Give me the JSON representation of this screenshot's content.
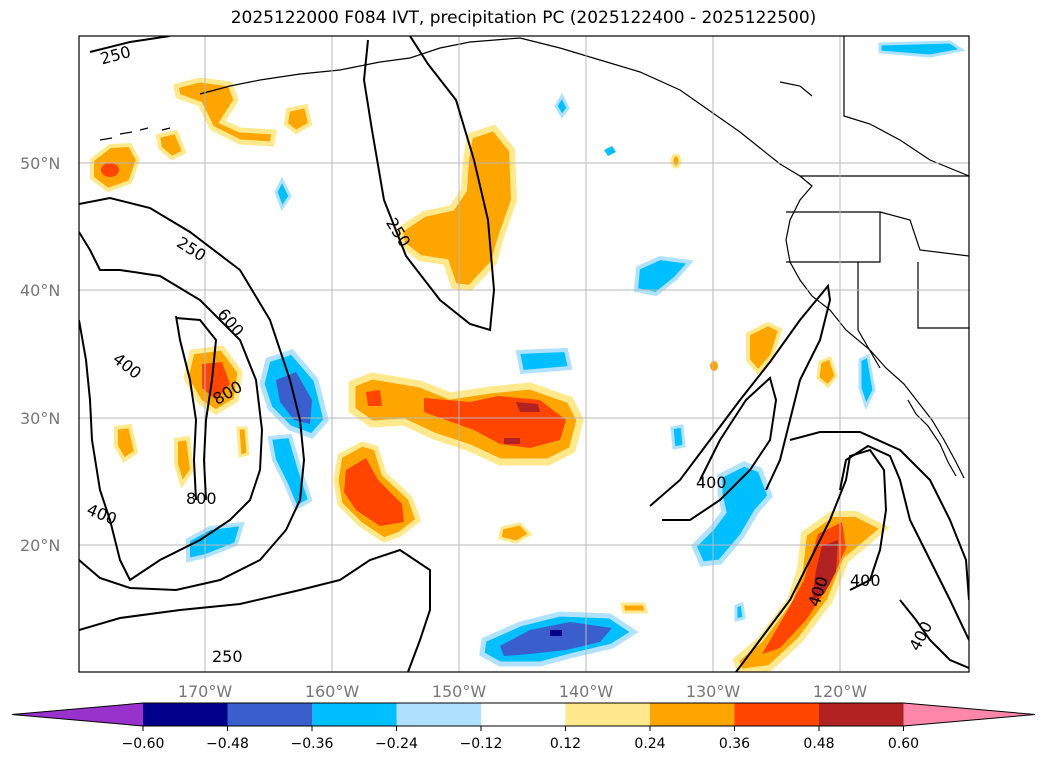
{
  "title": "2025122000 F084 IVT, precipitation PC (2025122400 - 2025122500)",
  "lat_labels": [
    "50°N",
    "40°N",
    "30°N",
    "20°N"
  ],
  "lon_labels": [
    "170°W",
    "160°W",
    "150°W",
    "140°W",
    "130°W",
    "120°W"
  ],
  "colorbar": {
    "colors": [
      "#9932cc",
      "#00008b",
      "#3a5fcd",
      "#00bfff",
      "#b0e2ff",
      "#ffffff",
      "#ffe98c",
      "#ffa500",
      "#ff4500",
      "#b22222",
      "#ff88aa"
    ],
    "tick_labels": [
      "−0.60",
      "−0.48",
      "−0.36",
      "−0.24",
      "−0.12",
      "0.12",
      "0.24",
      "0.36",
      "0.48",
      "0.60"
    ]
  },
  "contour_labels": [
    {
      "text": "250"
    },
    {
      "text": "250"
    },
    {
      "text": "600"
    },
    {
      "text": "800"
    },
    {
      "text": "400"
    },
    {
      "text": "800"
    },
    {
      "text": "400"
    },
    {
      "text": "250"
    },
    {
      "text": "400"
    },
    {
      "text": "250"
    },
    {
      "text": "400"
    },
    {
      "text": "400"
    }
  ]
}
